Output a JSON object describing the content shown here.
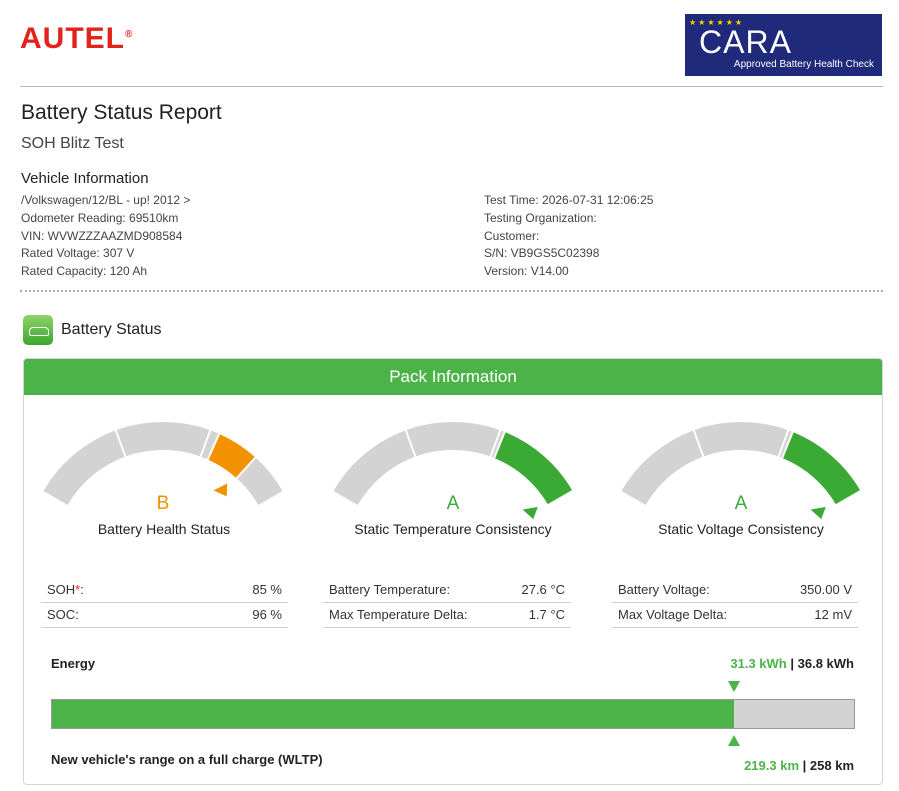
{
  "header": {
    "logo": "AUTEL",
    "logo_mark": "®",
    "badge": {
      "title": "CARA",
      "subtitle": "Approved Battery Health Check"
    }
  },
  "report": {
    "title": "Battery Status Report",
    "subtitle": "SOH Blitz Test"
  },
  "vehicle_info": {
    "heading": "Vehicle Information",
    "left": [
      "/Volkswagen/12/BL - up! 2012 >",
      "Odometer Reading: 69510km",
      "VIN: WVWZZZAAZMD908584",
      "Rated Voltage: 307 V",
      "Rated Capacity: 120 Ah"
    ],
    "right": [
      "Test Time: 2026-07-31 12:06:25",
      "Testing Organization:",
      "Customer:",
      "S/N: VB9GS5C02398",
      "Version: V14.00"
    ]
  },
  "battery_status": {
    "heading": "Battery Status",
    "panel_title": "Pack Information",
    "gauges": [
      {
        "grade": "B",
        "color": "#f39200",
        "label": "Battery Health Status",
        "rows": [
          {
            "label": [
              "SOH",
              "*",
              ":"
            ],
            "value": "85 %"
          },
          {
            "label": [
              "SOC:"
            ],
            "value": "96 %"
          }
        ]
      },
      {
        "grade": "A",
        "color": "#3aaa35",
        "label": "Static Temperature Consistency",
        "rows": [
          {
            "label": [
              "Battery Temperature:"
            ],
            "value": "27.6 °C"
          },
          {
            "label": [
              "Max Temperature Delta:"
            ],
            "value": "1.7 °C"
          }
        ]
      },
      {
        "grade": "A",
        "color": "#3aaa35",
        "label": "Static Voltage Consistency",
        "rows": [
          {
            "label": [
              "Battery Voltage:"
            ],
            "value": "350.00 V"
          },
          {
            "label": [
              "Max Voltage Delta:"
            ],
            "value": "12 mV"
          }
        ]
      }
    ],
    "energy": {
      "label": "Energy",
      "values": [
        31.3,
        36.8
      ],
      "value_labels": [
        "31.3 kWh",
        "36.8 kWh"
      ],
      "separator": "|"
    },
    "range": {
      "label": "New vehicle's range on a full charge (WLTP)",
      "values": [
        219.3,
        258
      ],
      "value_labels": [
        "219.3 km",
        "258 km"
      ],
      "separator": "|"
    }
  }
}
